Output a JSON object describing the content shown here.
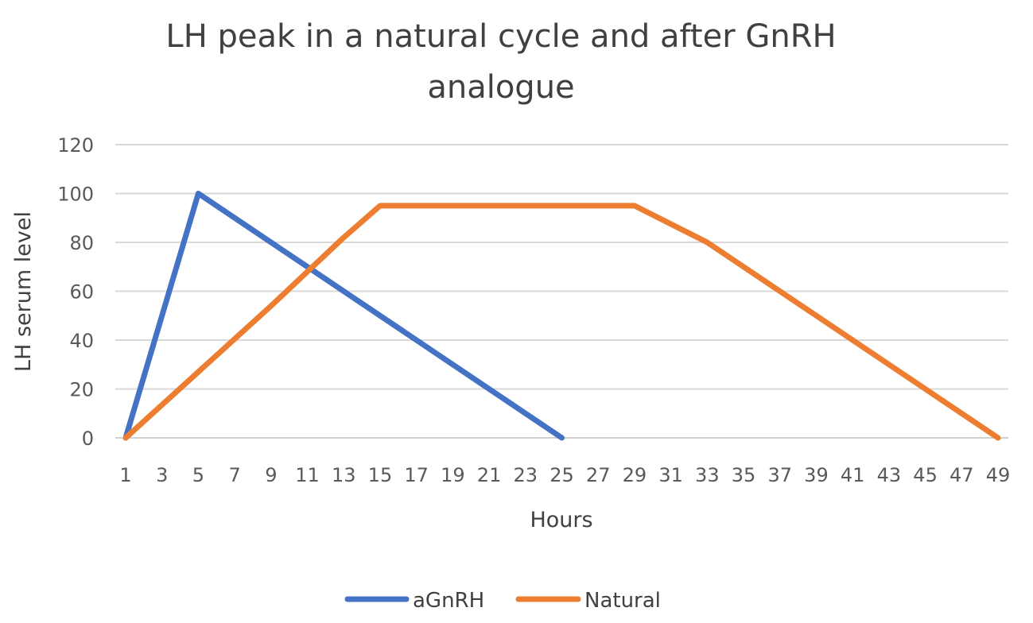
{
  "chart_data": {
    "type": "line",
    "title": "LH peak in a natural cycle and after GnRH\nanalogue",
    "xlabel": "Hours",
    "ylabel": "LH serum level",
    "ylim": [
      0,
      120
    ],
    "y_ticks": [
      0,
      20,
      40,
      60,
      80,
      100,
      120
    ],
    "x_tick_labels": [
      "1",
      "3",
      "5",
      "7",
      "9",
      "11",
      "13",
      "15",
      "17",
      "19",
      "21",
      "23",
      "25",
      "27",
      "29",
      "31",
      "33",
      "35",
      "37",
      "39",
      "41",
      "43",
      "45",
      "47",
      "49"
    ],
    "grid": true,
    "legend_position": "bottom",
    "series": [
      {
        "name": "aGnRH",
        "color": "#4472C4",
        "x": [
          1,
          5,
          13,
          17,
          21,
          23,
          25
        ],
        "y": [
          0,
          100,
          60,
          40,
          20,
          10,
          0
        ]
      },
      {
        "name": "Natural",
        "color": "#ED7D31",
        "x": [
          1,
          5,
          9,
          13,
          15,
          29,
          33,
          37,
          41,
          45,
          49
        ],
        "y": [
          0,
          27,
          54,
          82,
          95,
          95,
          80,
          60,
          40,
          20,
          0
        ]
      }
    ]
  }
}
